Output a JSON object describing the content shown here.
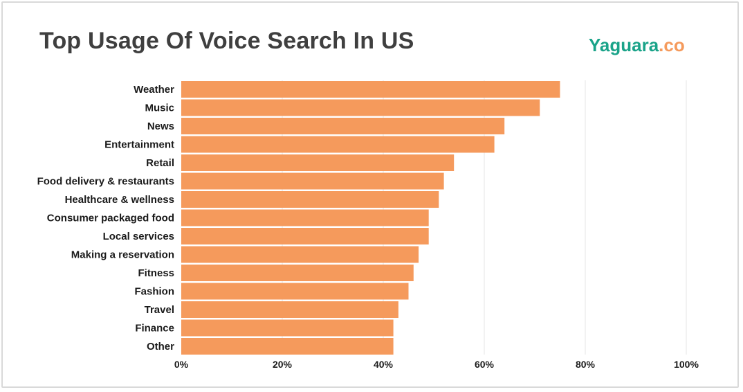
{
  "header": {
    "title": "Top Usage Of Voice Search In US",
    "brand_main": "Yaguara",
    "brand_suffix": ".co"
  },
  "colors": {
    "bar": "#f59a5c",
    "grid": "#e6e6e6",
    "brand_main": "#1aa389",
    "brand_suffix": "#f59a5c"
  },
  "chart_data": {
    "type": "bar",
    "orientation": "horizontal",
    "title": "Top Usage Of Voice Search In US",
    "xlabel": "",
    "ylabel": "",
    "categories": [
      "Weather",
      "Music",
      "News",
      "Entertainment",
      "Retail",
      "Food delivery & restaurants",
      "Healthcare & wellness",
      "Consumer packaged food",
      "Local services",
      "Making a reservation",
      "Fitness",
      "Fashion",
      "Travel",
      "Finance",
      "Other"
    ],
    "values": [
      75,
      71,
      64,
      62,
      54,
      52,
      51,
      49,
      49,
      47,
      46,
      45,
      43,
      42,
      42
    ],
    "xlim": [
      0,
      100
    ],
    "xticks": [
      0,
      20,
      40,
      60,
      80,
      100
    ],
    "xtick_labels": [
      "0%",
      "20%",
      "40%",
      "60%",
      "80%",
      "100%"
    ],
    "grid": true,
    "legend": "none"
  }
}
